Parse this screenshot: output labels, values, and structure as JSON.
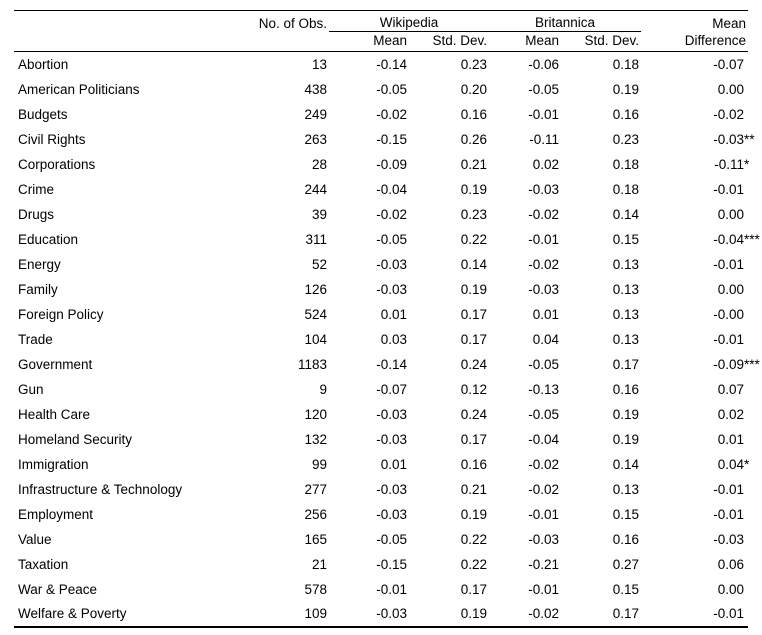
{
  "table": {
    "header": {
      "obs": "No. of Obs.",
      "wikipedia": "Wikipedia",
      "britannica": "Britannica",
      "mean": "Mean",
      "std_dev": "Std. Dev.",
      "diff_line1": "Mean",
      "diff_line2": "Difference"
    },
    "rows": [
      {
        "topic": "Abortion",
        "obs": "13",
        "wiki_mean": "-0.14",
        "wiki_sd": "0.23",
        "brit_mean": "-0.06",
        "brit_sd": "0.18",
        "diff": "-0.07",
        "stars": ""
      },
      {
        "topic": "American Politicians",
        "obs": "438",
        "wiki_mean": "-0.05",
        "wiki_sd": "0.20",
        "brit_mean": "-0.05",
        "brit_sd": "0.19",
        "diff": "0.00",
        "stars": ""
      },
      {
        "topic": "Budgets",
        "obs": "249",
        "wiki_mean": "-0.02",
        "wiki_sd": "0.16",
        "brit_mean": "-0.01",
        "brit_sd": "0.16",
        "diff": "-0.02",
        "stars": ""
      },
      {
        "topic": "Civil Rights",
        "obs": "263",
        "wiki_mean": "-0.15",
        "wiki_sd": "0.26",
        "brit_mean": "-0.11",
        "brit_sd": "0.23",
        "diff": "-0.03",
        "stars": "**"
      },
      {
        "topic": "Corporations",
        "obs": "28",
        "wiki_mean": "-0.09",
        "wiki_sd": "0.21",
        "brit_mean": "0.02",
        "brit_sd": "0.18",
        "diff": "-0.11",
        "stars": "*"
      },
      {
        "topic": "Crime",
        "obs": "244",
        "wiki_mean": "-0.04",
        "wiki_sd": "0.19",
        "brit_mean": "-0.03",
        "brit_sd": "0.18",
        "diff": "-0.01",
        "stars": ""
      },
      {
        "topic": "Drugs",
        "obs": "39",
        "wiki_mean": "-0.02",
        "wiki_sd": "0.23",
        "brit_mean": "-0.02",
        "brit_sd": "0.14",
        "diff": "0.00",
        "stars": ""
      },
      {
        "topic": "Education",
        "obs": "311",
        "wiki_mean": "-0.05",
        "wiki_sd": "0.22",
        "brit_mean": "-0.01",
        "brit_sd": "0.15",
        "diff": "-0.04",
        "stars": "***"
      },
      {
        "topic": "Energy",
        "obs": "52",
        "wiki_mean": "-0.03",
        "wiki_sd": "0.14",
        "brit_mean": "-0.02",
        "brit_sd": "0.13",
        "diff": "-0.01",
        "stars": ""
      },
      {
        "topic": "Family",
        "obs": "126",
        "wiki_mean": "-0.03",
        "wiki_sd": "0.19",
        "brit_mean": "-0.03",
        "brit_sd": "0.13",
        "diff": "0.00",
        "stars": ""
      },
      {
        "topic": "Foreign Policy",
        "obs": "524",
        "wiki_mean": "0.01",
        "wiki_sd": "0.17",
        "brit_mean": "0.01",
        "brit_sd": "0.13",
        "diff": "-0.00",
        "stars": ""
      },
      {
        "topic": "Trade",
        "obs": "104",
        "wiki_mean": "0.03",
        "wiki_sd": "0.17",
        "brit_mean": "0.04",
        "brit_sd": "0.13",
        "diff": "-0.01",
        "stars": ""
      },
      {
        "topic": "Government",
        "obs": "1183",
        "wiki_mean": "-0.14",
        "wiki_sd": "0.24",
        "brit_mean": "-0.05",
        "brit_sd": "0.17",
        "diff": "-0.09",
        "stars": "***"
      },
      {
        "topic": "Gun",
        "obs": "9",
        "wiki_mean": "-0.07",
        "wiki_sd": "0.12",
        "brit_mean": "-0.13",
        "brit_sd": "0.16",
        "diff": "0.07",
        "stars": ""
      },
      {
        "topic": "Health Care",
        "obs": "120",
        "wiki_mean": "-0.03",
        "wiki_sd": "0.24",
        "brit_mean": "-0.05",
        "brit_sd": "0.19",
        "diff": "0.02",
        "stars": ""
      },
      {
        "topic": "Homeland Security",
        "obs": "132",
        "wiki_mean": "-0.03",
        "wiki_sd": "0.17",
        "brit_mean": "-0.04",
        "brit_sd": "0.19",
        "diff": "0.01",
        "stars": ""
      },
      {
        "topic": "Immigration",
        "obs": "99",
        "wiki_mean": "0.01",
        "wiki_sd": "0.16",
        "brit_mean": "-0.02",
        "brit_sd": "0.14",
        "diff": "0.04",
        "stars": "*"
      },
      {
        "topic": "Infrastructure & Technology",
        "obs": "277",
        "wiki_mean": "-0.03",
        "wiki_sd": "0.21",
        "brit_mean": "-0.02",
        "brit_sd": "0.13",
        "diff": "-0.01",
        "stars": ""
      },
      {
        "topic": "Employment",
        "obs": "256",
        "wiki_mean": "-0.03",
        "wiki_sd": "0.19",
        "brit_mean": "-0.01",
        "brit_sd": "0.15",
        "diff": "-0.01",
        "stars": ""
      },
      {
        "topic": "Value",
        "obs": "165",
        "wiki_mean": "-0.05",
        "wiki_sd": "0.22",
        "brit_mean": "-0.03",
        "brit_sd": "0.16",
        "diff": "-0.03",
        "stars": ""
      },
      {
        "topic": "Taxation",
        "obs": "21",
        "wiki_mean": "-0.15",
        "wiki_sd": "0.22",
        "brit_mean": "-0.21",
        "brit_sd": "0.27",
        "diff": "0.06",
        "stars": ""
      },
      {
        "topic": "War & Peace",
        "obs": "578",
        "wiki_mean": "-0.01",
        "wiki_sd": "0.17",
        "brit_mean": "-0.01",
        "brit_sd": "0.15",
        "diff": "0.00",
        "stars": ""
      },
      {
        "topic": "Welfare & Poverty",
        "obs": "109",
        "wiki_mean": "-0.03",
        "wiki_sd": "0.19",
        "brit_mean": "-0.02",
        "brit_sd": "0.17",
        "diff": "-0.01",
        "stars": ""
      }
    ]
  }
}
